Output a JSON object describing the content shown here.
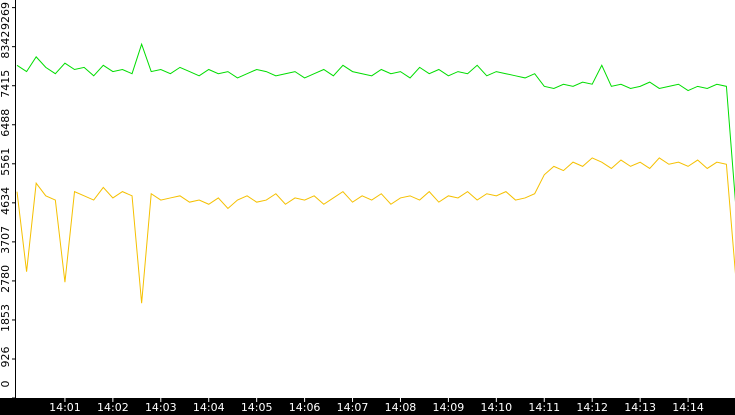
{
  "chart_data": {
    "type": "line",
    "x": [
      0,
      0.2,
      0.4,
      0.6,
      0.8,
      1,
      1.2,
      1.4,
      1.6,
      1.8,
      2,
      2.2,
      2.4,
      2.6,
      2.8,
      3,
      3.2,
      3.4,
      3.6,
      3.8,
      4,
      4.2,
      4.4,
      4.6,
      4.8,
      5,
      5.2,
      5.4,
      5.6,
      5.8,
      6,
      6.2,
      6.4,
      6.6,
      6.8,
      7,
      7.2,
      7.4,
      7.6,
      7.8,
      8,
      8.2,
      8.4,
      8.6,
      8.8,
      9,
      9.2,
      9.4,
      9.6,
      9.8,
      10,
      10.2,
      10.4,
      10.6,
      10.8,
      11,
      11.2,
      11.4,
      11.6,
      11.8,
      12,
      12.2,
      12.4,
      12.6,
      12.8,
      13,
      13.2,
      13.4,
      13.6,
      13.8,
      14,
      14.2,
      14.4,
      14.6,
      14.8,
      15
    ],
    "series": [
      {
        "color": "#00dd00",
        "values": [
          7900,
          7750,
          8100,
          7850,
          7700,
          7950,
          7800,
          7850,
          7650,
          7900,
          7750,
          7800,
          7700,
          8400,
          7750,
          7800,
          7700,
          7850,
          7750,
          7650,
          7800,
          7700,
          7750,
          7600,
          7700,
          7800,
          7750,
          7650,
          7700,
          7750,
          7600,
          7700,
          7800,
          7650,
          7900,
          7750,
          7700,
          7650,
          7800,
          7700,
          7750,
          7600,
          7850,
          7700,
          7800,
          7650,
          7750,
          7700,
          7900,
          7650,
          7750,
          7700,
          7650,
          7600,
          7700,
          7400,
          7350,
          7450,
          7400,
          7500,
          7450,
          7900,
          7400,
          7450,
          7350,
          7400,
          7500,
          7350,
          7400,
          7450,
          7300,
          7400,
          7350,
          7450,
          7400,
          4500
        ]
      },
      {
        "color": "#f5c000",
        "values": [
          4900,
          3000,
          5100,
          4800,
          4700,
          2750,
          4900,
          4800,
          4700,
          5000,
          4750,
          4900,
          4800,
          2250,
          4850,
          4700,
          4750,
          4800,
          4650,
          4700,
          4600,
          4750,
          4500,
          4700,
          4800,
          4650,
          4700,
          4850,
          4600,
          4750,
          4700,
          4800,
          4600,
          4750,
          4900,
          4650,
          4800,
          4700,
          4850,
          4600,
          4750,
          4800,
          4700,
          4900,
          4650,
          4800,
          4750,
          4900,
          4700,
          4850,
          4800,
          4900,
          4700,
          4750,
          4850,
          5300,
          5500,
          5400,
          5600,
          5500,
          5700,
          5600,
          5450,
          5650,
          5500,
          5600,
          5450,
          5700,
          5550,
          5600,
          5500,
          5650,
          5450,
          5600,
          5550,
          2800
        ]
      }
    ],
    "xlim": [
      0,
      15
    ],
    "xticks": [
      {
        "value": 1,
        "label": "14:01"
      },
      {
        "value": 2,
        "label": "14:02"
      },
      {
        "value": 3,
        "label": "14:03"
      },
      {
        "value": 4,
        "label": "14:04"
      },
      {
        "value": 5,
        "label": "14:05"
      },
      {
        "value": 6,
        "label": "14:06"
      },
      {
        "value": 7,
        "label": "14:07"
      },
      {
        "value": 8,
        "label": "14:08"
      },
      {
        "value": 9,
        "label": "14:09"
      },
      {
        "value": 10,
        "label": "14:10"
      },
      {
        "value": 11,
        "label": "14:11"
      },
      {
        "value": 12,
        "label": "14:12"
      },
      {
        "value": 13,
        "label": "14:13"
      },
      {
        "value": 14,
        "label": "14:14"
      }
    ],
    "ylim": [
      0,
      9450
    ],
    "yticks": [
      0,
      926,
      1853,
      2780,
      3707,
      4634,
      5561,
      6488,
      7415,
      8342,
      9269
    ]
  }
}
